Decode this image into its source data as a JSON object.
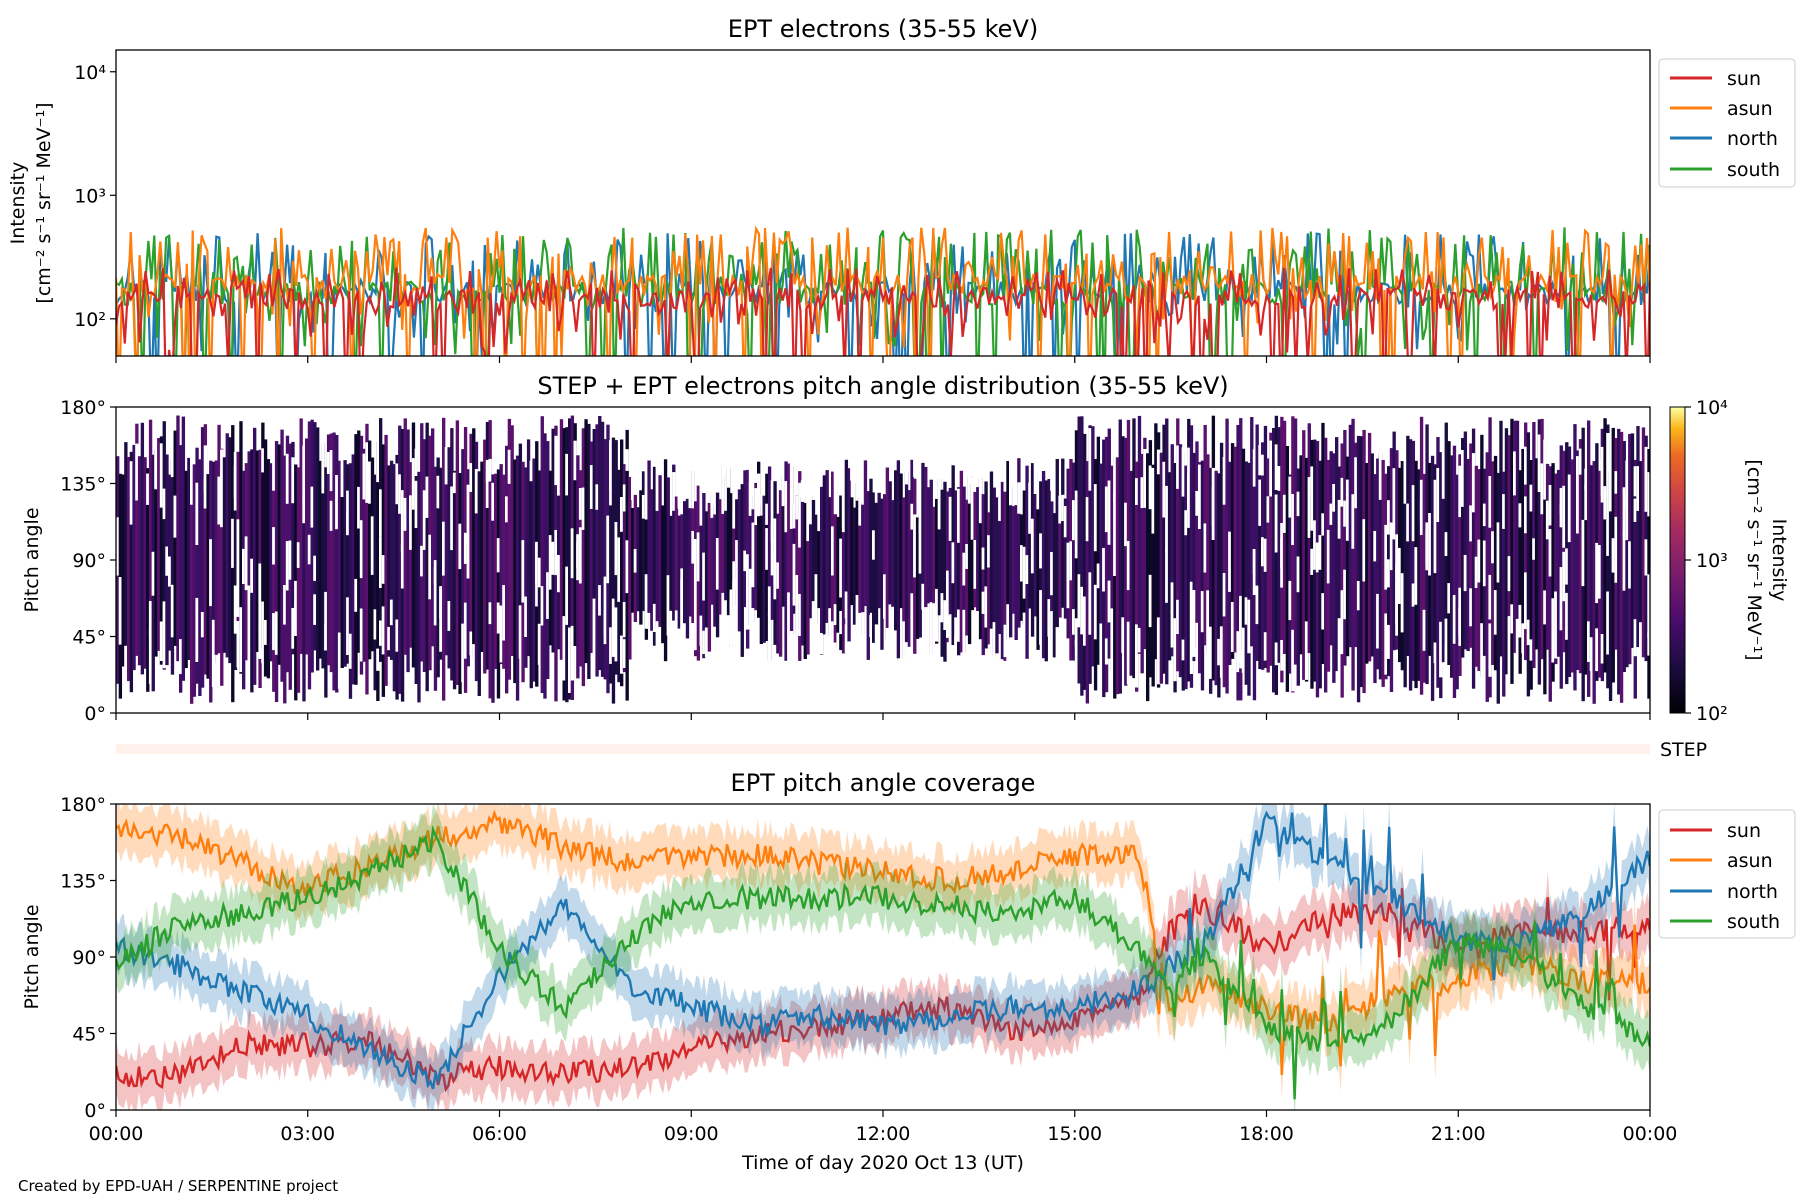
{
  "footer": "Created by EPD-UAH / SERPENTINE project",
  "xlabel": "Time of day 2020 Oct 13 (UT)",
  "x_ticks": [
    "00:00",
    "03:00",
    "06:00",
    "09:00",
    "12:00",
    "15:00",
    "18:00",
    "21:00",
    "00:00"
  ],
  "colors": {
    "sun": "#d62728",
    "asun": "#ff7f0e",
    "north": "#1f77b4",
    "south": "#2ca02c"
  },
  "chart_data": [
    {
      "type": "line",
      "title": "EPT electrons (35-55 keV)",
      "ylabel": "Intensity",
      "ylabel_units": "[cm⁻² s⁻¹ sr⁻¹ MeV⁻¹]",
      "yscale": "log",
      "ylim": [
        50,
        15000
      ],
      "y_ticks": [
        {
          "value": 100,
          "label": "10²"
        },
        {
          "value": 1000,
          "label": "10³"
        },
        {
          "value": 10000,
          "label": "10⁴"
        }
      ],
      "x_range_hours": [
        0,
        24
      ],
      "legend": "outside-right",
      "series": [
        {
          "name": "sun",
          "color": "#d62728",
          "base": [
            120,
            180
          ],
          "spread": [
            30,
            260
          ]
        },
        {
          "name": "asun",
          "color": "#ff7f0e",
          "base": [
            150,
            230
          ],
          "spread": [
            50,
            550
          ]
        },
        {
          "name": "north",
          "color": "#1f77b4",
          "base": [
            130,
            200
          ],
          "spread": [
            50,
            500
          ]
        },
        {
          "name": "south",
          "color": "#2ca02c",
          "base": [
            130,
            200
          ],
          "spread": [
            50,
            550
          ]
        }
      ],
      "draw_order": [
        "north",
        "south",
        "asun",
        "sun"
      ]
    },
    {
      "type": "heatmap",
      "title": "STEP + EPT electrons pitch angle distribution (35-55 keV)",
      "ylabel": "Pitch angle",
      "ylim": [
        0,
        180
      ],
      "y_ticks": [
        "0°",
        "45°",
        "90°",
        "135°",
        "180°"
      ],
      "x_range_hours": [
        0,
        24
      ],
      "colorbar": {
        "label": "Intensity",
        "units": "[cm⁻² s⁻¹ sr⁻¹ MeV⁻¹]",
        "scale": "log",
        "range": [
          100,
          10000
        ],
        "ticks": [
          "10²",
          "10³",
          "10⁴"
        ],
        "colormap": "inferno"
      },
      "step_label": "STEP"
    },
    {
      "type": "line",
      "title": "EPT pitch angle coverage",
      "ylabel": "Pitch angle",
      "ylim": [
        0,
        180
      ],
      "y_ticks": [
        0,
        45,
        90,
        135,
        180
      ],
      "y_tick_labels": [
        "0°",
        "45°",
        "90°",
        "135°",
        "180°"
      ],
      "legend": "outside-right",
      "band_halfwidth": 15,
      "series": [
        {
          "name": "sun",
          "color": "#d62728",
          "x": [
            0,
            1,
            2,
            3,
            4,
            5,
            6,
            7,
            8,
            9,
            10,
            11,
            12,
            13,
            14,
            15,
            16,
            16.5,
            17,
            18,
            19,
            20,
            21,
            22,
            23,
            24
          ],
          "y": [
            20,
            20,
            38,
            38,
            40,
            18,
            25,
            22,
            25,
            35,
            45,
            48,
            55,
            60,
            45,
            55,
            65,
            105,
            120,
            95,
            115,
            115,
            95,
            105,
            105,
            110
          ]
        },
        {
          "name": "asun",
          "color": "#ff7f0e",
          "x": [
            0,
            1,
            2,
            3,
            4,
            5,
            6,
            7,
            8,
            9,
            10,
            11,
            12,
            13,
            14,
            15,
            16,
            16.5,
            17,
            18,
            19,
            20,
            21,
            22,
            23,
            24
          ],
          "y": [
            165,
            160,
            145,
            130,
            145,
            160,
            170,
            155,
            145,
            150,
            150,
            145,
            140,
            135,
            140,
            150,
            150,
            60,
            75,
            60,
            50,
            70,
            75,
            90,
            75,
            75
          ]
        },
        {
          "name": "north",
          "color": "#1f77b4",
          "x": [
            0,
            1,
            2,
            3,
            4,
            5,
            6,
            7,
            8,
            9,
            10,
            11,
            12,
            13,
            14,
            15,
            16,
            16.5,
            17,
            18,
            19,
            20,
            21,
            22,
            23,
            24
          ],
          "y": [
            95,
            85,
            70,
            55,
            35,
            15,
            80,
            120,
            75,
            60,
            50,
            55,
            50,
            55,
            60,
            60,
            70,
            85,
            95,
            170,
            145,
            125,
            100,
            100,
            115,
            150
          ]
        },
        {
          "name": "south",
          "color": "#2ca02c",
          "x": [
            0,
            1,
            2,
            3,
            4,
            5,
            6,
            7,
            8,
            9,
            10,
            11,
            12,
            13,
            14,
            15,
            16,
            16.5,
            17,
            18,
            19,
            20,
            21,
            22,
            23,
            24
          ],
          "y": [
            85,
            110,
            115,
            125,
            140,
            160,
            95,
            60,
            100,
            125,
            125,
            125,
            125,
            120,
            115,
            125,
            95,
            75,
            90,
            50,
            35,
            55,
            100,
            90,
            60,
            40
          ]
        }
      ]
    }
  ]
}
